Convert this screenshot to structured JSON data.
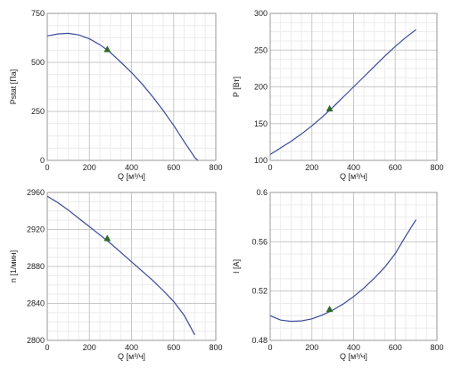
{
  "chart_data": [
    {
      "type": "line",
      "xlabel": "Q [м³/ч]",
      "ylabel": "Pstat [Па]",
      "xlim": [
        0,
        800
      ],
      "ylim": [
        0,
        750
      ],
      "x_ticks": [
        "0",
        "200",
        "400",
        "600",
        "800"
      ],
      "y_ticks": [
        "0",
        "250",
        "500",
        "750"
      ],
      "grid": true,
      "series": [
        {
          "x": [
            0,
            50,
            100,
            150,
            200,
            250,
            300,
            350,
            400,
            450,
            500,
            550,
            600,
            650,
            700,
            715
          ],
          "values": [
            635,
            645,
            648,
            640,
            620,
            590,
            550,
            500,
            448,
            390,
            325,
            255,
            178,
            95,
            15,
            0
          ]
        }
      ],
      "operating_point": {
        "x": 285,
        "y": 565
      }
    },
    {
      "type": "line",
      "xlabel": "Q [м³/ч]",
      "ylabel": "P [Вт]",
      "xlim": [
        0,
        800
      ],
      "ylim": [
        100,
        300
      ],
      "x_ticks": [
        "0",
        "200",
        "400",
        "600",
        "800"
      ],
      "y_ticks": [
        "100",
        "150",
        "200",
        "250",
        "300"
      ],
      "grid": true,
      "series": [
        {
          "x": [
            0,
            50,
            100,
            150,
            200,
            250,
            300,
            350,
            400,
            450,
            500,
            550,
            600,
            650,
            700
          ],
          "values": [
            108,
            117,
            126,
            136,
            147,
            159,
            172,
            186,
            200,
            214,
            228,
            242,
            255,
            267,
            278
          ]
        }
      ],
      "operating_point": {
        "x": 285,
        "y": 170
      }
    },
    {
      "type": "line",
      "xlabel": "Q [м³/ч]",
      "ylabel": "n [1/мин]",
      "xlim": [
        0,
        800
      ],
      "ylim": [
        2800,
        2960
      ],
      "x_ticks": [
        "0",
        "200",
        "400",
        "600",
        "800"
      ],
      "y_ticks": [
        "2800",
        "2840",
        "2880",
        "2920",
        "2960"
      ],
      "grid": true,
      "series": [
        {
          "x": [
            0,
            50,
            100,
            150,
            200,
            250,
            300,
            350,
            400,
            450,
            500,
            550,
            600,
            650,
            700
          ],
          "values": [
            2956,
            2949,
            2941,
            2932,
            2923,
            2914,
            2905,
            2895,
            2885,
            2875,
            2865,
            2854,
            2842,
            2827,
            2806
          ]
        }
      ],
      "operating_point": {
        "x": 285,
        "y": 2910
      }
    },
    {
      "type": "line",
      "xlabel": "Q [м³/ч]",
      "ylabel": "I [A]",
      "xlim": [
        0,
        800
      ],
      "ylim": [
        0.48,
        0.6
      ],
      "x_ticks": [
        "0",
        "200",
        "400",
        "600",
        "800"
      ],
      "y_ticks": [
        "0.48",
        "0.52",
        "0.56",
        "0.6"
      ],
      "grid": true,
      "series": [
        {
          "x": [
            0,
            50,
            100,
            150,
            200,
            250,
            300,
            350,
            400,
            450,
            500,
            550,
            600,
            650,
            700
          ],
          "values": [
            0.5,
            0.4965,
            0.4955,
            0.4958,
            0.4975,
            0.5005,
            0.5045,
            0.5095,
            0.5155,
            0.5225,
            0.5305,
            0.5395,
            0.5505,
            0.5645,
            0.578
          ]
        }
      ],
      "operating_point": {
        "x": 285,
        "y": 0.505
      }
    }
  ],
  "colors": {
    "curve": "#3a4a98",
    "marker": "#2d6a2a",
    "grid_major": "#c8c8c8",
    "grid_minor": "#ececec",
    "frame": "#9a9a9a"
  }
}
